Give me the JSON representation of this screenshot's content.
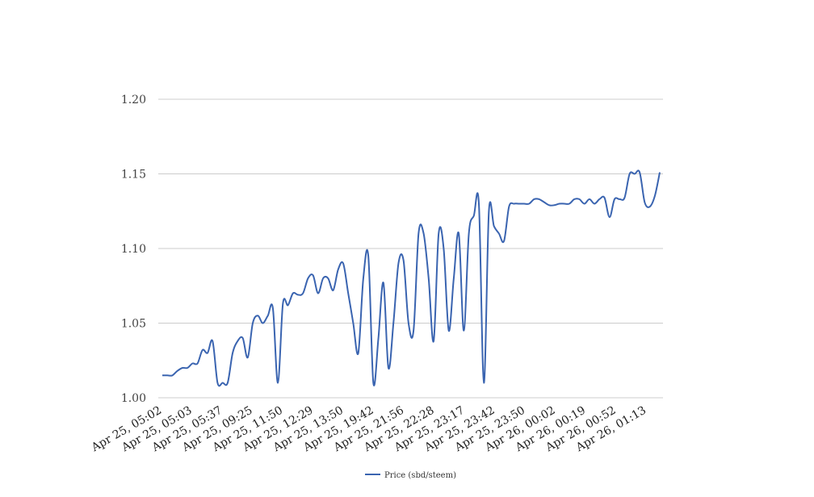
{
  "chart_data": {
    "type": "line",
    "title": "",
    "xlabel": "",
    "ylabel": "",
    "ylim": [
      1.0,
      1.2
    ],
    "yticks": [
      "1.00",
      "1.05",
      "1.10",
      "1.15",
      "1.20"
    ],
    "grid": true,
    "legend_position": "bottom",
    "x_tick_labels": [
      "Apr 25, 05:02",
      "Apr 25, 05:03",
      "Apr 25, 05:37",
      "Apr 25, 09:25",
      "Apr 25, 11:50",
      "Apr 25, 12:29",
      "Apr 25, 13:50",
      "Apr 25, 19:42",
      "Apr 25, 21:56",
      "Apr 25, 22:28",
      "Apr 25, 23:17",
      "Apr 25, 23:42",
      "Apr 25, 23:50",
      "Apr 26, 00:02",
      "Apr 26, 00:19",
      "Apr 26, 00:52",
      "Apr 26, 01:13"
    ],
    "series": [
      {
        "name": "Price (sbd/steem)",
        "color": "#3a64b0",
        "values": [
          1.015,
          1.015,
          1.015,
          1.018,
          1.02,
          1.02,
          1.023,
          1.023,
          1.032,
          1.03,
          1.038,
          1.01,
          1.01,
          1.01,
          1.03,
          1.038,
          1.04,
          1.027,
          1.05,
          1.055,
          1.05,
          1.055,
          1.06,
          1.01,
          1.063,
          1.062,
          1.07,
          1.069,
          1.07,
          1.08,
          1.082,
          1.07,
          1.08,
          1.08,
          1.072,
          1.086,
          1.09,
          1.07,
          1.05,
          1.03,
          1.08,
          1.095,
          1.01,
          1.04,
          1.077,
          1.02,
          1.05,
          1.09,
          1.092,
          1.05,
          1.045,
          1.11,
          1.11,
          1.08,
          1.038,
          1.11,
          1.1,
          1.045,
          1.08,
          1.11,
          1.045,
          1.11,
          1.122,
          1.13,
          1.01,
          1.125,
          1.115,
          1.11,
          1.105,
          1.128,
          1.13,
          1.13,
          1.13,
          1.13,
          1.133,
          1.133,
          1.131,
          1.129,
          1.129,
          1.13,
          1.13,
          1.13,
          1.133,
          1.133,
          1.13,
          1.133,
          1.13,
          1.133,
          1.134,
          1.121,
          1.133,
          1.133,
          1.134,
          1.15,
          1.15,
          1.151,
          1.131,
          1.128,
          1.135,
          1.151
        ]
      }
    ]
  }
}
